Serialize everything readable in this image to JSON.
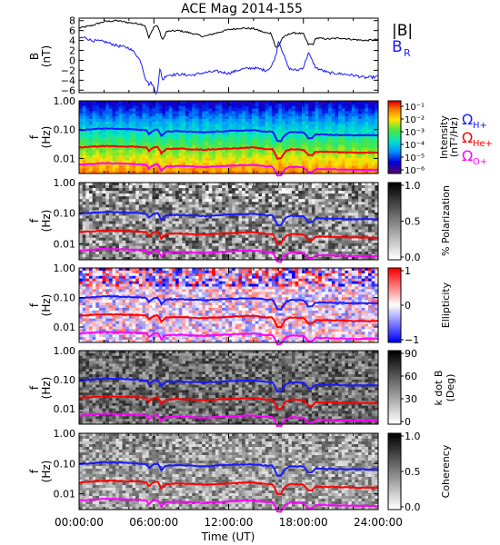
{
  "title": "ACE Mag 2014-155",
  "xlabel": "Time (UT)",
  "x_ticks": [
    "00:00:00",
    "06:00:00",
    "12:00:00",
    "18:00:00",
    "24:00:00"
  ],
  "colors": {
    "b_total": "#000000",
    "b_r": "#1a1aff",
    "h_plus": "#1a1aff",
    "he_plus": "#ff0000",
    "o_plus": "#ff00ff"
  },
  "panel1": {
    "ylabel_main": "B",
    "ylabel_unit": "(nT)",
    "legend_btotal": "|B|",
    "legend_br_main": "B",
    "legend_br_sub": "R",
    "y_ticks": [
      "8",
      "6",
      "4",
      "2",
      "0",
      "−2",
      "−4",
      "−6"
    ]
  },
  "spec": {
    "ylabel_main": "f",
    "ylabel_unit": "(Hz)",
    "y_ticks": [
      "1.00",
      "0.10",
      "0.01"
    ]
  },
  "panel2": {
    "colorbar_label_1": "Intensity",
    "colorbar_label_2": "(nT²/Hz)",
    "colorbar_ticks": [
      "10⁻¹",
      "10⁻²",
      "10⁻³",
      "10⁻⁴",
      "10⁻⁵",
      "10⁻⁶"
    ],
    "legend_h": "Ω",
    "legend_h_sub": "H+",
    "legend_he": "Ω",
    "legend_he_sub": "He+",
    "legend_o": "Ω",
    "legend_o_sub": "O+"
  },
  "panel3": {
    "colorbar_label": "% Polarization",
    "colorbar_ticks": [
      "1.0",
      "0.5",
      "0.0"
    ]
  },
  "panel4": {
    "colorbar_label": "Ellipticity",
    "colorbar_ticks": [
      "1",
      "0",
      "−1"
    ]
  },
  "panel5": {
    "colorbar_label_1": "k dot B",
    "colorbar_label_2": "(Deg)",
    "colorbar_ticks": [
      "90",
      "60",
      "30",
      "0"
    ]
  },
  "panel6": {
    "colorbar_label": "Coherency",
    "colorbar_ticks": [
      "1.0",
      "0.5",
      "0.0"
    ]
  },
  "chart_data": {
    "type": "line",
    "x_unit": "hours UT",
    "xlim": [
      0,
      24
    ],
    "series": [
      {
        "name": "|B|",
        "x": [
          0,
          1,
          2,
          3,
          4,
          5,
          5.3,
          5.6,
          6,
          6.3,
          6.7,
          7,
          8,
          9,
          10,
          11,
          12,
          13,
          14,
          15,
          15.4,
          15.8,
          16,
          16.3,
          17,
          17.5,
          18,
          18.4,
          18.8,
          19,
          20,
          21,
          22,
          23,
          24
        ],
        "values": [
          6.5,
          7,
          7.8,
          8,
          7.6,
          7.3,
          7,
          4.5,
          6.8,
          7,
          4,
          5.8,
          6,
          5.5,
          4.8,
          5.5,
          6.2,
          6.5,
          6.4,
          5.5,
          5.5,
          2.5,
          2.8,
          4.5,
          5.5,
          5.5,
          5.3,
          3.2,
          3.3,
          4.5,
          4.3,
          4.5,
          4.2,
          4,
          4.2
        ]
      },
      {
        "name": "B_R",
        "x": [
          0,
          0.5,
          1,
          2,
          3,
          4,
          4.5,
          5,
          5.3,
          5.6,
          5.8,
          6,
          6.15,
          6.3,
          6.5,
          6.7,
          7,
          8,
          9,
          10,
          11,
          12,
          13,
          14,
          15,
          15.4,
          15.8,
          16,
          16.3,
          16.8,
          17,
          17.5,
          18,
          18.4,
          18.8,
          19,
          20,
          21,
          22,
          23,
          24
        ],
        "values": [
          4.5,
          4.6,
          4,
          3.8,
          3,
          2.5,
          1.5,
          -0.5,
          -3.5,
          -4.8,
          -4.5,
          -5.5,
          -6.5,
          -6,
          -1.5,
          -4,
          -3,
          -2.8,
          -3,
          -2.5,
          -2.2,
          -2.6,
          -1.8,
          -1.5,
          -2,
          -1.4,
          1,
          4,
          2,
          -1.5,
          -1.8,
          -2,
          -1.4,
          1.5,
          -0.5,
          -1.5,
          -2.5,
          -2.7,
          -3,
          -3.5,
          -3.3
        ]
      }
    ],
    "panel1_ylim": [
      -6.5,
      8.5
    ],
    "spectrogram_panels": [
      {
        "name": "Intensity",
        "scale": "log",
        "range": [
          1e-06,
          0.2
        ]
      },
      {
        "name": "% Polarization",
        "range": [
          0,
          1
        ]
      },
      {
        "name": "Ellipticity",
        "range": [
          -1,
          1
        ]
      },
      {
        "name": "k dot B",
        "unit": "Deg",
        "range": [
          0,
          90
        ]
      },
      {
        "name": "Coherency",
        "range": [
          0,
          1
        ]
      }
    ],
    "freq_ylim_hz": [
      0.003,
      1.0
    ],
    "freq_scale": "log",
    "gyrofrequency_lines": [
      {
        "name": "ΩH+",
        "x": [
          0,
          2,
          4,
          5,
          5.4,
          5.6,
          6,
          6.3,
          6.6,
          7,
          8,
          10,
          12,
          14,
          15,
          15.5,
          15.9,
          16.2,
          16.6,
          17,
          18,
          18.4,
          18.7,
          19,
          20,
          22,
          24
        ],
        "values": [
          0.095,
          0.11,
          0.105,
          0.098,
          0.095,
          0.07,
          0.095,
          0.1,
          0.06,
          0.085,
          0.088,
          0.08,
          0.09,
          0.095,
          0.085,
          0.085,
          0.04,
          0.04,
          0.07,
          0.082,
          0.08,
          0.05,
          0.052,
          0.068,
          0.066,
          0.064,
          0.064
        ]
      },
      {
        "name": "ΩHe+",
        "x": [
          0,
          2,
          4,
          5,
          5.4,
          5.6,
          6,
          6.3,
          6.6,
          7,
          8,
          10,
          12,
          14,
          15,
          15.5,
          15.9,
          16.2,
          16.6,
          17,
          18,
          18.4,
          18.7,
          19,
          20,
          22,
          24
        ],
        "values": [
          0.024,
          0.027,
          0.026,
          0.025,
          0.024,
          0.018,
          0.024,
          0.025,
          0.015,
          0.021,
          0.022,
          0.02,
          0.022,
          0.024,
          0.021,
          0.021,
          0.01,
          0.01,
          0.018,
          0.021,
          0.02,
          0.013,
          0.013,
          0.017,
          0.017,
          0.016,
          0.016
        ]
      },
      {
        "name": "ΩO+",
        "x": [
          0,
          2,
          4,
          5,
          5.4,
          5.6,
          6,
          6.3,
          6.6,
          7,
          8,
          10,
          12,
          14,
          15,
          15.5,
          15.9,
          16.2,
          16.6,
          17,
          18,
          18.4,
          18.7,
          19,
          20,
          22,
          24
        ],
        "values": [
          0.006,
          0.0068,
          0.0065,
          0.0062,
          0.006,
          0.0045,
          0.006,
          0.0062,
          0.0038,
          0.0053,
          0.0055,
          0.005,
          0.0056,
          0.006,
          0.0053,
          0.0053,
          0.0026,
          0.0026,
          0.0045,
          0.0052,
          0.005,
          0.0032,
          0.0033,
          0.0043,
          0.0042,
          0.004,
          0.004
        ]
      }
    ]
  }
}
